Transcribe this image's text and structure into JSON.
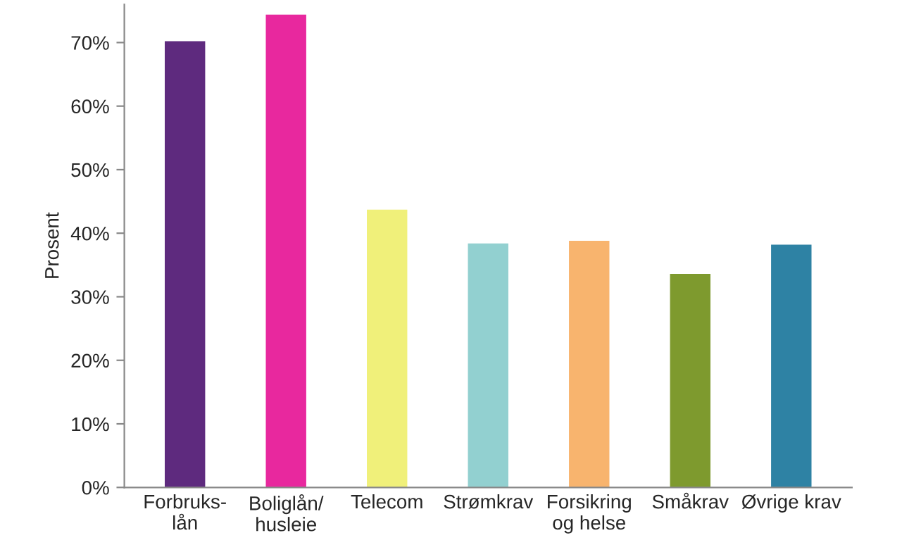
{
  "chart_data": {
    "type": "bar",
    "ylabel": "Prosent",
    "categories": [
      "Forbruks-\nlån",
      "Boliglån/\nhusleie",
      "Telecom",
      "Strømkrav",
      "Forsikring\nog helse",
      "Småkrav",
      "Øvrige krav"
    ],
    "values": [
      70.2,
      74.4,
      43.7,
      38.4,
      38.8,
      33.6,
      38.2
    ],
    "colors": [
      "#5e2a7e",
      "#e8289e",
      "#f0f07a",
      "#92d0d0",
      "#f8b46e",
      "#7e9a2e",
      "#2e82a4"
    ],
    "ylim": [
      0,
      76
    ],
    "yticks": [
      {
        "value": 0,
        "label": "0%"
      },
      {
        "value": 10,
        "label": "10%"
      },
      {
        "value": 20,
        "label": "20%"
      },
      {
        "value": 30,
        "label": "30%"
      },
      {
        "value": 40,
        "label": "40%"
      },
      {
        "value": 50,
        "label": "50%"
      },
      {
        "value": 60,
        "label": "60%"
      },
      {
        "value": 70,
        "label": "70%"
      }
    ],
    "grid": false
  }
}
